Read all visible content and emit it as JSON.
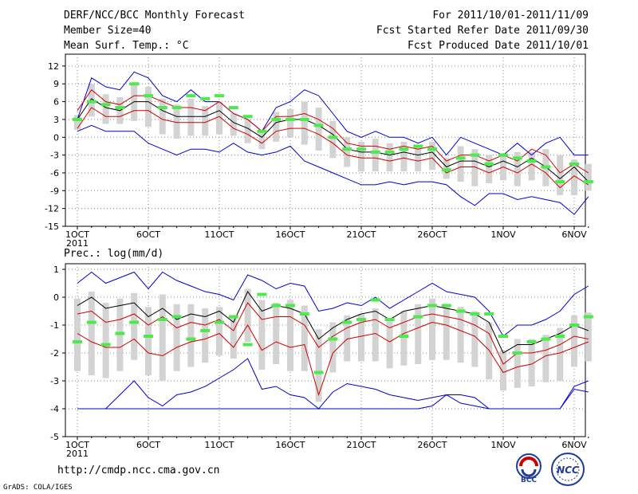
{
  "header": {
    "title": "DERF/NCC/BCC Monthly Forecast",
    "member_size": "Member Size=40",
    "variable": "Mean Surf. Temp.: °C",
    "period": "For 2011/10/01-2011/11/09",
    "started": "Fcst Started Refer Date 2011/09/30",
    "produced": "Fcst Produced Date 2011/10/01"
  },
  "footer": {
    "url": "http://cmdp.ncc.cma.gov.cn",
    "grads": "GrADS: COLA/IGES",
    "logo_bcc": "BCC",
    "logo_ncc": "NCC"
  },
  "colors": {
    "envelope": "#0000cc",
    "spread": "#cc0000",
    "mean": "#000000",
    "box": "#d3d3d3",
    "obs": "#4cea4c"
  },
  "chart_data": [
    {
      "type": "line",
      "title": "Mean Surf. Temp.: °C",
      "x_tick_labels": [
        "1OCT",
        "6OCT",
        "11OCT",
        "16OCT",
        "21OCT",
        "26OCT",
        "1NOV",
        "6NOV"
      ],
      "x_year_label": "2011",
      "ylim": [
        -15,
        14
      ],
      "yticks": [
        12,
        9,
        6,
        3,
        0,
        -3,
        -6,
        -9,
        -12,
        -15
      ],
      "series": [
        {
          "name": "max",
          "values": [
            3,
            10,
            8.5,
            8,
            11,
            10,
            7,
            6,
            8,
            6,
            6,
            4,
            3,
            1,
            5,
            6,
            8,
            7,
            4,
            1,
            0,
            1,
            0,
            0,
            -1,
            0,
            -3,
            0,
            -1,
            -2,
            -3,
            -1,
            -3,
            -1,
            0,
            -3,
            -3
          ]
        },
        {
          "name": "upper",
          "values": [
            4.5,
            8,
            6,
            5.5,
            7,
            7,
            6,
            5,
            5,
            4.5,
            6,
            4,
            3,
            1,
            3.5,
            3.5,
            4,
            3,
            1.5,
            -1,
            -1.5,
            -1.5,
            -2,
            -1.5,
            -2,
            -1.5,
            -4,
            -3,
            -3,
            -4,
            -3,
            -4,
            -2,
            -3,
            -6,
            -4.5,
            -6
          ]
        },
        {
          "name": "mean",
          "values": [
            3,
            6.5,
            5,
            4.5,
            6,
            6,
            4.5,
            3.5,
            3.5,
            3.5,
            4.5,
            2.5,
            1.5,
            0,
            2.5,
            3,
            3,
            2,
            0.5,
            -2,
            -2.5,
            -2.5,
            -3,
            -2.5,
            -3,
            -2.5,
            -5,
            -4,
            -4,
            -5,
            -4,
            -5,
            -3.5,
            -5,
            -7,
            -5,
            -7.5
          ]
        },
        {
          "name": "lower",
          "values": [
            1.5,
            5,
            3.5,
            3.5,
            4.5,
            4.5,
            3,
            2.5,
            2.5,
            2.5,
            3.5,
            1.5,
            0.5,
            -1,
            1,
            1.5,
            1.5,
            0.5,
            -1,
            -3,
            -3.5,
            -3.5,
            -4,
            -3.5,
            -4,
            -3.5,
            -6,
            -5,
            -5,
            -6,
            -5,
            -6,
            -4.5,
            -6,
            -8.5,
            -6.5,
            -8
          ]
        },
        {
          "name": "min",
          "values": [
            1,
            2,
            1,
            1,
            1,
            -1,
            -2,
            -3,
            -2,
            -2,
            -2.5,
            -1,
            -2.5,
            -3,
            -2.5,
            -1.5,
            -4,
            -5,
            -6,
            -7,
            -8,
            -8,
            -7.5,
            -8,
            -7.5,
            -7.5,
            -8,
            -10,
            -11.5,
            -9.5,
            -9.5,
            -10.5,
            -10,
            -10.5,
            -11,
            -13,
            -10
          ]
        },
        {
          "name": "obs",
          "values": [
            3,
            6,
            5.5,
            5,
            9,
            7,
            5,
            5,
            7,
            6.5,
            7,
            5,
            3.5,
            1,
            3,
            3,
            3,
            2,
            0,
            -2,
            -2,
            -2.5,
            -2.5,
            -2,
            -1.5,
            -2,
            -5.5,
            -3.5,
            -3,
            -4.5,
            -3,
            -3.5,
            -4,
            -5,
            -7.5,
            -4.5,
            -7.5
          ]
        }
      ]
    },
    {
      "type": "line",
      "title": "Prec.: log(mm/d)",
      "x_tick_labels": [
        "1OCT",
        "6OCT",
        "11OCT",
        "16OCT",
        "21OCT",
        "26OCT",
        "1NOV",
        "6NOV"
      ],
      "x_year_label": "2011",
      "ylim": [
        -5,
        1.2
      ],
      "yticks": [
        1,
        0,
        -1,
        -2,
        -3,
        -4,
        -5
      ],
      "series": [
        {
          "name": "max",
          "values": [
            0.5,
            0.9,
            0.5,
            0.7,
            0.9,
            0.3,
            0.9,
            0.6,
            0.4,
            0.2,
            0.1,
            -0.1,
            0.8,
            0.6,
            0.3,
            0.5,
            0.4,
            -0.5,
            -0.4,
            -0.2,
            -0.3,
            0,
            -0.4,
            -0.1,
            0.2,
            0.5,
            0.2,
            0.1,
            0,
            -0.5,
            -1.4,
            -1,
            -1,
            -0.8,
            -0.5,
            0.1,
            0.4
          ]
        },
        {
          "name": "mean",
          "values": [
            -0.3,
            0,
            -0.4,
            -0.3,
            -0.2,
            -0.7,
            -0.4,
            -0.8,
            -0.6,
            -0.7,
            -0.5,
            -0.9,
            0.2,
            -0.5,
            -0.3,
            -0.4,
            -0.6,
            -1.5,
            -1.1,
            -0.8,
            -0.6,
            -0.5,
            -0.8,
            -0.5,
            -0.4,
            -0.3,
            -0.4,
            -0.5,
            -0.6,
            -0.9,
            -2,
            -1.7,
            -1.7,
            -1.5,
            -1.3,
            -1,
            -1.2
          ]
        },
        {
          "name": "upper",
          "values": [
            -0.6,
            -0.5,
            -0.9,
            -0.8,
            -0.6,
            -1,
            -0.7,
            -1.1,
            -0.9,
            -1,
            -0.8,
            -1.2,
            -0.2,
            -0.8,
            -0.7,
            -0.7,
            -1,
            -1.8,
            -1.4,
            -1.1,
            -0.9,
            -0.8,
            -1.1,
            -0.9,
            -0.7,
            -0.6,
            -0.7,
            -0.8,
            -1,
            -1.3,
            -2.4,
            -2,
            -2,
            -1.9,
            -1.7,
            -1.4,
            -1.5
          ]
        },
        {
          "name": "lower",
          "values": [
            -1.3,
            -1.6,
            -1.8,
            -1.8,
            -1.5,
            -2,
            -2.1,
            -1.8,
            -1.6,
            -1.5,
            -1.3,
            -1.8,
            -1,
            -1.9,
            -1.6,
            -1.8,
            -1.7,
            -3.5,
            -2,
            -1.5,
            -1.4,
            -1.3,
            -1.6,
            -1.3,
            -1.1,
            -0.9,
            -1,
            -1.2,
            -1.4,
            -1.9,
            -2.7,
            -2.5,
            -2.4,
            -2.1,
            -2,
            -1.8,
            -1.6
          ]
        },
        {
          "name": "min",
          "values": [
            -4,
            -4,
            -4,
            -3.5,
            -3,
            -3.6,
            -3.9,
            -3.5,
            -3.4,
            -3.2,
            -2.9,
            -2.6,
            -2.2,
            -3.3,
            -3.2,
            -3.5,
            -3.6,
            -4,
            -3.4,
            -3.1,
            -3.2,
            -3.3,
            -3.5,
            -3.6,
            -3.7,
            -3.6,
            -3.5,
            -3.5,
            -3.6,
            -4,
            -4,
            -4,
            -4,
            -4,
            -4,
            -3.2,
            -3
          ]
        },
        {
          "name": "bottom",
          "values": [
            -4,
            -4,
            -4,
            -4,
            -4,
            -4,
            -4,
            -4,
            -4,
            -4,
            -4,
            -4,
            -4,
            -4,
            -4,
            -4,
            -4,
            -4,
            -4,
            -4,
            -4,
            -4,
            -4,
            -4,
            -4,
            -3.9,
            -3.5,
            -3.8,
            -3.9,
            -4,
            -4,
            -4,
            -4,
            -4,
            -4,
            -3.3,
            -3.4
          ]
        },
        {
          "name": "obs",
          "values": [
            -1.6,
            -0.9,
            -1.7,
            -1.3,
            -0.9,
            -1.4,
            -0.8,
            -0.7,
            -1.5,
            -1.2,
            -0.9,
            -0.7,
            -1.7,
            0.1,
            -0.3,
            -0.3,
            -0.6,
            -2.7,
            -1.5,
            -0.9,
            -0.8,
            -0.1,
            -0.8,
            -1.4,
            -0.7,
            -0.3,
            -0.3,
            -0.5,
            -0.6,
            -0.6,
            -1.4,
            -2,
            -1.6,
            -1.5,
            -1.4,
            -1,
            -0.7
          ]
        }
      ]
    }
  ]
}
